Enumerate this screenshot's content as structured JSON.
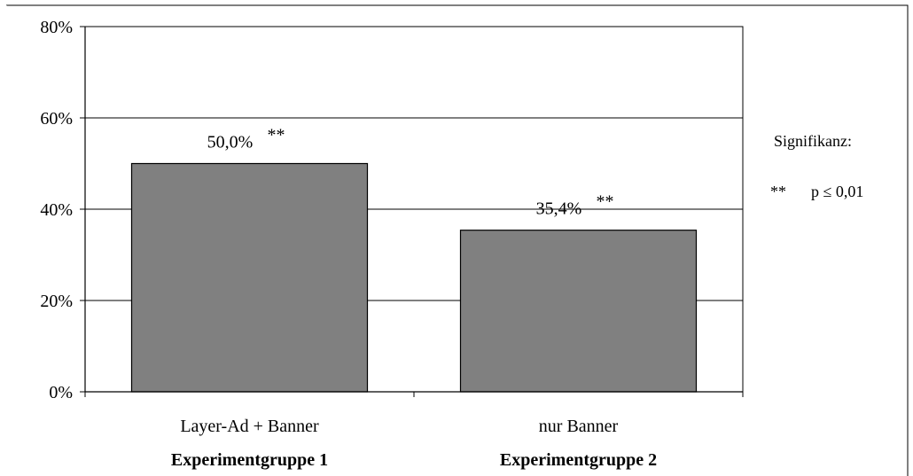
{
  "chart_data": {
    "type": "bar",
    "categories": [
      "Layer-Ad + Banner",
      "nur Banner"
    ],
    "group_labels": [
      "Experimentgruppe 1",
      "Experimentgruppe 2"
    ],
    "values": [
      50.0,
      35.4
    ],
    "data_labels": [
      "50,0%",
      "35,4%"
    ],
    "significance_marks": [
      "**",
      "**"
    ],
    "y_ticks": [
      "0%",
      "20%",
      "40%",
      "60%",
      "80%"
    ],
    "y_tick_values": [
      0,
      20,
      40,
      60,
      80
    ],
    "ylim": [
      0,
      80
    ],
    "grid": true,
    "bar_color": "#808080",
    "title": "",
    "xlabel": "",
    "ylabel": ""
  },
  "legend": {
    "title": "Signifikanz:",
    "entries": [
      {
        "mark": "**",
        "text": "p ≤ 0,01"
      }
    ]
  }
}
